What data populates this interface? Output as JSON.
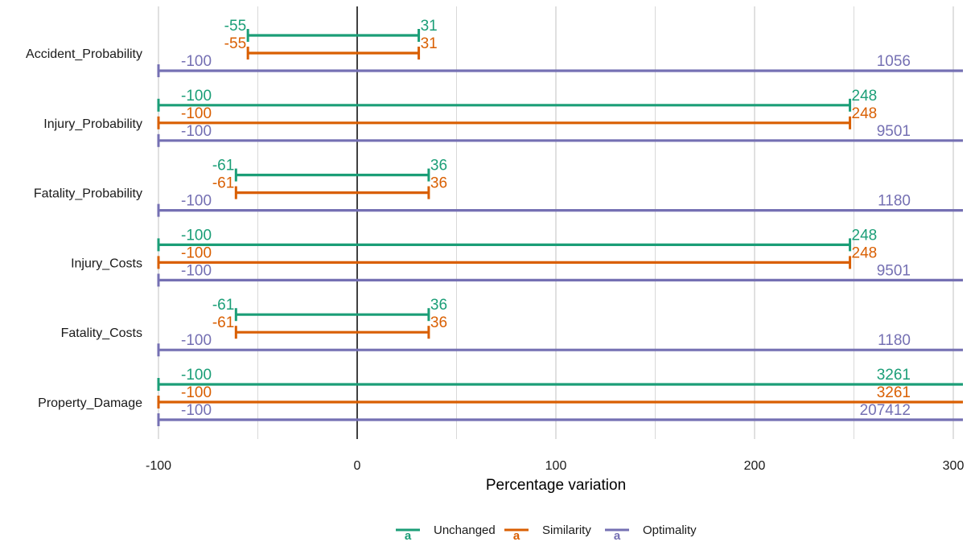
{
  "colors": {
    "Unchanged": "#1B9E77",
    "Similarity": "#D95F02",
    "Optimality": "#7570B3",
    "grid": "#d9d9d9",
    "zero_line": "#000000"
  },
  "chart_data": {
    "type": "errorbar-range",
    "title": "",
    "xlabel": "Percentage variation",
    "ylabel": "",
    "xlim": [
      -100,
      300
    ],
    "x_ticks": [
      -100,
      0,
      100,
      200,
      300
    ],
    "grid": true,
    "legend_position": "bottom",
    "legend_key_symbol": "a",
    "categories": [
      "Accident_Probability",
      "Injury_Probability",
      "Fatality_Probability",
      "Injury_Costs",
      "Fatality_Costs",
      "Property_Damage"
    ],
    "series": [
      {
        "name": "Unchanged",
        "ranges": [
          [
            -55,
            31
          ],
          [
            -100,
            248
          ],
          [
            -61,
            36
          ],
          [
            -100,
            248
          ],
          [
            -61,
            36
          ],
          [
            -100,
            3261
          ]
        ]
      },
      {
        "name": "Similarity",
        "ranges": [
          [
            -55,
            31
          ],
          [
            -100,
            248
          ],
          [
            -61,
            36
          ],
          [
            -100,
            248
          ],
          [
            -61,
            36
          ],
          [
            -100,
            3261
          ]
        ]
      },
      {
        "name": "Optimality",
        "ranges": [
          [
            -100,
            1056
          ],
          [
            -100,
            9501
          ],
          [
            -100,
            1180
          ],
          [
            -100,
            9501
          ],
          [
            -100,
            1180
          ],
          [
            -100,
            207412
          ]
        ]
      }
    ]
  }
}
